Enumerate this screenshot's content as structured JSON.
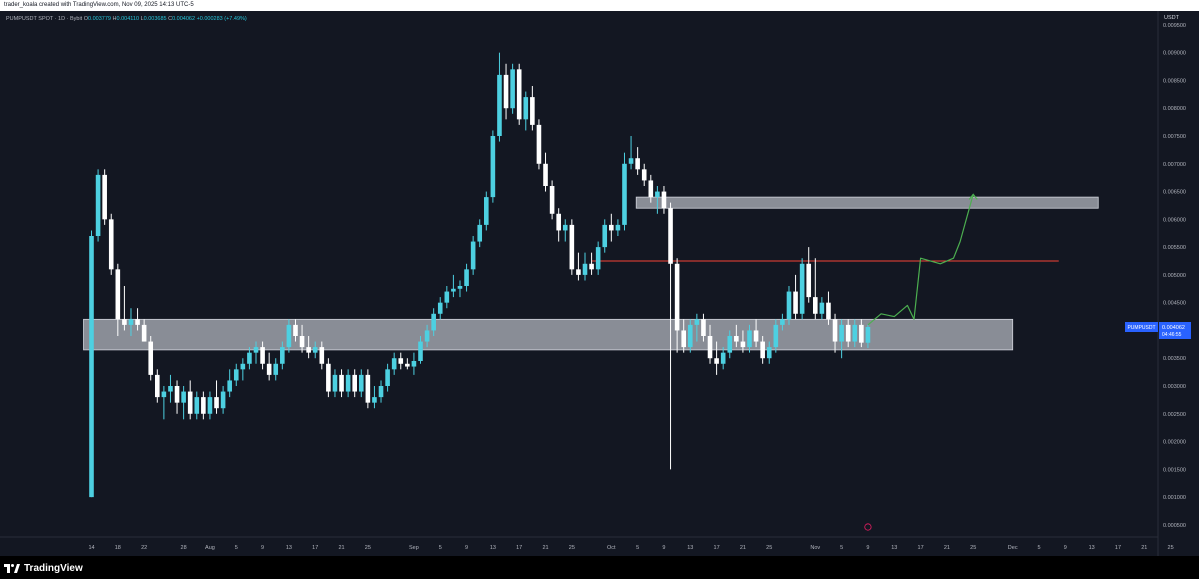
{
  "header": {
    "caption": "trader_koala created with TradingView.com, Nov 09, 2025 14:13 UTC-5"
  },
  "legend": {
    "symbol": "PUMPUSDT SPOT · 1D · Bybit",
    "o_label": "O",
    "o_value": "0.003779",
    "h_label": "H",
    "h_value": "0.004110",
    "l_label": "L",
    "l_value": "0.003685",
    "c_label": "C",
    "c_value": "0.004062",
    "change": "+0.000283 (+7.49%)"
  },
  "price_axis": {
    "currency": "USDT",
    "last_price_tag": "PUMPUSDT",
    "last_price": "0.004062",
    "countdown": "04:46:55"
  },
  "footer": {
    "brand": "TradingView"
  },
  "colors": {
    "background": "#131722",
    "bull": "#4dd0e1",
    "bear": "#ffffff",
    "zone": "#b2b5be",
    "resistance_line": "#f44336",
    "projection": "#4caf50",
    "text": "#b2b5be",
    "price_tag": "#2962ff"
  },
  "chart_data": {
    "type": "candlestick",
    "timeframe": "1D",
    "ylim": [
      0.0003,
      0.00975
    ],
    "y_ticks": [
      "0.000500",
      "0.001000",
      "0.001500",
      "0.002000",
      "0.002500",
      "0.003000",
      "0.003500",
      "0.004000",
      "0.004500",
      "0.005000",
      "0.005500",
      "0.006000",
      "0.006500",
      "0.007000",
      "0.007500",
      "0.008000",
      "0.008500",
      "0.009000",
      "0.009500"
    ],
    "x_ticks": [
      "14",
      "18",
      "22",
      "28",
      "Aug",
      "5",
      "9",
      "13",
      "17",
      "21",
      "25",
      "Sep",
      "5",
      "9",
      "13",
      "17",
      "21",
      "25",
      "Oct",
      "5",
      "9",
      "13",
      "17",
      "21",
      "25",
      "Nov",
      "5",
      "9",
      "13",
      "17",
      "21",
      "25",
      "Dec",
      "5",
      "9",
      "13",
      "17",
      "21",
      "25"
    ],
    "x_start": "2025-07-14",
    "x_tick_dates": [
      "2025-07-14",
      "2025-07-18",
      "2025-07-22",
      "2025-07-28",
      "2025-08-01",
      "2025-08-05",
      "2025-08-09",
      "2025-08-13",
      "2025-08-17",
      "2025-08-21",
      "2025-08-25",
      "2025-09-01",
      "2025-09-05",
      "2025-09-09",
      "2025-09-13",
      "2025-09-17",
      "2025-09-21",
      "2025-09-25",
      "2025-10-01",
      "2025-10-05",
      "2025-10-09",
      "2025-10-13",
      "2025-10-17",
      "2025-10-21",
      "2025-10-25",
      "2025-11-01",
      "2025-11-05",
      "2025-11-09",
      "2025-11-13",
      "2025-11-17",
      "2025-11-21",
      "2025-11-25",
      "2025-12-01",
      "2025-12-05",
      "2025-12-09",
      "2025-12-13",
      "2025-12-17",
      "2025-12-21",
      "2025-12-25"
    ],
    "candles": [
      {
        "date": "2025-07-14",
        "o": 0.001,
        "h": 0.0058,
        "l": 0.001,
        "c": 0.0057
      },
      {
        "date": "2025-07-15",
        "o": 0.0057,
        "h": 0.0069,
        "l": 0.0056,
        "c": 0.0068
      },
      {
        "date": "2025-07-16",
        "o": 0.0068,
        "h": 0.0069,
        "l": 0.0059,
        "c": 0.006
      },
      {
        "date": "2025-07-17",
        "o": 0.006,
        "h": 0.0061,
        "l": 0.005,
        "c": 0.0051
      },
      {
        "date": "2025-07-18",
        "o": 0.0051,
        "h": 0.0052,
        "l": 0.0039,
        "c": 0.0042
      },
      {
        "date": "2025-07-19",
        "o": 0.0042,
        "h": 0.0048,
        "l": 0.004,
        "c": 0.0041
      },
      {
        "date": "2025-07-20",
        "o": 0.0041,
        "h": 0.0044,
        "l": 0.0039,
        "c": 0.0042
      },
      {
        "date": "2025-07-21",
        "o": 0.0042,
        "h": 0.0044,
        "l": 0.004,
        "c": 0.0041
      },
      {
        "date": "2025-07-22",
        "o": 0.0041,
        "h": 0.0042,
        "l": 0.0038,
        "c": 0.0038
      },
      {
        "date": "2025-07-23",
        "o": 0.0038,
        "h": 0.0039,
        "l": 0.0031,
        "c": 0.0032
      },
      {
        "date": "2025-07-24",
        "o": 0.0032,
        "h": 0.0033,
        "l": 0.0027,
        "c": 0.0028
      },
      {
        "date": "2025-07-25",
        "o": 0.0028,
        "h": 0.003,
        "l": 0.0024,
        "c": 0.0029
      },
      {
        "date": "2025-07-26",
        "o": 0.0029,
        "h": 0.0032,
        "l": 0.0027,
        "c": 0.003
      },
      {
        "date": "2025-07-27",
        "o": 0.003,
        "h": 0.0031,
        "l": 0.0025,
        "c": 0.0027
      },
      {
        "date": "2025-07-28",
        "o": 0.0027,
        "h": 0.003,
        "l": 0.0024,
        "c": 0.0029
      },
      {
        "date": "2025-07-29",
        "o": 0.0029,
        "h": 0.0031,
        "l": 0.0024,
        "c": 0.0025
      },
      {
        "date": "2025-07-30",
        "o": 0.0025,
        "h": 0.0029,
        "l": 0.0024,
        "c": 0.0028
      },
      {
        "date": "2025-07-31",
        "o": 0.0028,
        "h": 0.0029,
        "l": 0.0024,
        "c": 0.0025
      },
      {
        "date": "2025-08-01",
        "o": 0.0025,
        "h": 0.0029,
        "l": 0.0024,
        "c": 0.0028
      },
      {
        "date": "2025-08-02",
        "o": 0.0028,
        "h": 0.0031,
        "l": 0.0025,
        "c": 0.0026
      },
      {
        "date": "2025-08-03",
        "o": 0.0026,
        "h": 0.003,
        "l": 0.0025,
        "c": 0.0029
      },
      {
        "date": "2025-08-04",
        "o": 0.0029,
        "h": 0.0033,
        "l": 0.0028,
        "c": 0.0031
      },
      {
        "date": "2025-08-05",
        "o": 0.0031,
        "h": 0.0034,
        "l": 0.003,
        "c": 0.0033
      },
      {
        "date": "2025-08-06",
        "o": 0.0033,
        "h": 0.0035,
        "l": 0.0031,
        "c": 0.0034
      },
      {
        "date": "2025-08-07",
        "o": 0.0034,
        "h": 0.0037,
        "l": 0.0033,
        "c": 0.0036
      },
      {
        "date": "2025-08-08",
        "o": 0.0036,
        "h": 0.0038,
        "l": 0.0034,
        "c": 0.0037
      },
      {
        "date": "2025-08-09",
        "o": 0.0037,
        "h": 0.0038,
        "l": 0.0033,
        "c": 0.0034
      },
      {
        "date": "2025-08-10",
        "o": 0.0034,
        "h": 0.0036,
        "l": 0.0031,
        "c": 0.0032
      },
      {
        "date": "2025-08-11",
        "o": 0.0032,
        "h": 0.0035,
        "l": 0.0031,
        "c": 0.0034
      },
      {
        "date": "2025-08-12",
        "o": 0.0034,
        "h": 0.0038,
        "l": 0.0033,
        "c": 0.0037
      },
      {
        "date": "2025-08-13",
        "o": 0.0037,
        "h": 0.0042,
        "l": 0.0036,
        "c": 0.0041
      },
      {
        "date": "2025-08-14",
        "o": 0.0041,
        "h": 0.0042,
        "l": 0.0038,
        "c": 0.0039
      },
      {
        "date": "2025-08-15",
        "o": 0.0039,
        "h": 0.0041,
        "l": 0.0036,
        "c": 0.0037
      },
      {
        "date": "2025-08-16",
        "o": 0.0037,
        "h": 0.0039,
        "l": 0.0035,
        "c": 0.0036
      },
      {
        "date": "2025-08-17",
        "o": 0.0036,
        "h": 0.0038,
        "l": 0.0035,
        "c": 0.0037
      },
      {
        "date": "2025-08-18",
        "o": 0.0037,
        "h": 0.0038,
        "l": 0.0033,
        "c": 0.0034
      },
      {
        "date": "2025-08-19",
        "o": 0.0034,
        "h": 0.0035,
        "l": 0.0028,
        "c": 0.0029
      },
      {
        "date": "2025-08-20",
        "o": 0.0029,
        "h": 0.0033,
        "l": 0.0028,
        "c": 0.0032
      },
      {
        "date": "2025-08-21",
        "o": 0.0032,
        "h": 0.0033,
        "l": 0.0028,
        "c": 0.0029
      },
      {
        "date": "2025-08-22",
        "o": 0.0029,
        "h": 0.0033,
        "l": 0.0028,
        "c": 0.0032
      },
      {
        "date": "2025-08-23",
        "o": 0.0032,
        "h": 0.0033,
        "l": 0.0028,
        "c": 0.0029
      },
      {
        "date": "2025-08-24",
        "o": 0.0029,
        "h": 0.0033,
        "l": 0.0028,
        "c": 0.0032
      },
      {
        "date": "2025-08-25",
        "o": 0.0032,
        "h": 0.0033,
        "l": 0.0026,
        "c": 0.0027
      },
      {
        "date": "2025-08-26",
        "o": 0.0027,
        "h": 0.003,
        "l": 0.0026,
        "c": 0.0028
      },
      {
        "date": "2025-08-27",
        "o": 0.0028,
        "h": 0.0031,
        "l": 0.0027,
        "c": 0.003
      },
      {
        "date": "2025-08-28",
        "o": 0.003,
        "h": 0.0034,
        "l": 0.0029,
        "c": 0.0033
      },
      {
        "date": "2025-08-29",
        "o": 0.0033,
        "h": 0.0036,
        "l": 0.0032,
        "c": 0.0035
      },
      {
        "date": "2025-08-30",
        "o": 0.0035,
        "h": 0.0036,
        "l": 0.0033,
        "c": 0.0034
      },
      {
        "date": "2025-08-31",
        "o": 0.0034,
        "h": 0.0035,
        "l": 0.0033,
        "c": 0.00335
      },
      {
        "date": "2025-09-01",
        "o": 0.00335,
        "h": 0.0036,
        "l": 0.0032,
        "c": 0.00345
      },
      {
        "date": "2025-09-02",
        "o": 0.00345,
        "h": 0.0039,
        "l": 0.0034,
        "c": 0.0038
      },
      {
        "date": "2025-09-03",
        "o": 0.0038,
        "h": 0.0041,
        "l": 0.0037,
        "c": 0.004
      },
      {
        "date": "2025-09-04",
        "o": 0.004,
        "h": 0.0044,
        "l": 0.0039,
        "c": 0.0043
      },
      {
        "date": "2025-09-05",
        "o": 0.0043,
        "h": 0.0046,
        "l": 0.0042,
        "c": 0.0045
      },
      {
        "date": "2025-09-06",
        "o": 0.0045,
        "h": 0.0048,
        "l": 0.0044,
        "c": 0.0047
      },
      {
        "date": "2025-09-07",
        "o": 0.0047,
        "h": 0.005,
        "l": 0.0046,
        "c": 0.00475
      },
      {
        "date": "2025-09-08",
        "o": 0.00475,
        "h": 0.0049,
        "l": 0.0046,
        "c": 0.0048
      },
      {
        "date": "2025-09-09",
        "o": 0.0048,
        "h": 0.0052,
        "l": 0.0047,
        "c": 0.0051
      },
      {
        "date": "2025-09-10",
        "o": 0.0051,
        "h": 0.0057,
        "l": 0.005,
        "c": 0.0056
      },
      {
        "date": "2025-09-11",
        "o": 0.0056,
        "h": 0.006,
        "l": 0.0055,
        "c": 0.0059
      },
      {
        "date": "2025-09-12",
        "o": 0.0059,
        "h": 0.0065,
        "l": 0.0058,
        "c": 0.0064
      },
      {
        "date": "2025-09-13",
        "o": 0.0064,
        "h": 0.0076,
        "l": 0.0063,
        "c": 0.0075
      },
      {
        "date": "2025-09-14",
        "o": 0.0075,
        "h": 0.009,
        "l": 0.0074,
        "c": 0.0086
      },
      {
        "date": "2025-09-15",
        "o": 0.0086,
        "h": 0.0088,
        "l": 0.0078,
        "c": 0.008
      },
      {
        "date": "2025-09-16",
        "o": 0.008,
        "h": 0.0088,
        "l": 0.0079,
        "c": 0.0087
      },
      {
        "date": "2025-09-17",
        "o": 0.0087,
        "h": 0.0088,
        "l": 0.0077,
        "c": 0.0078
      },
      {
        "date": "2025-09-18",
        "o": 0.0078,
        "h": 0.0083,
        "l": 0.0076,
        "c": 0.0082
      },
      {
        "date": "2025-09-19",
        "o": 0.0082,
        "h": 0.0084,
        "l": 0.0076,
        "c": 0.0077
      },
      {
        "date": "2025-09-20",
        "o": 0.0077,
        "h": 0.0078,
        "l": 0.0069,
        "c": 0.007
      },
      {
        "date": "2025-09-21",
        "o": 0.007,
        "h": 0.0072,
        "l": 0.0065,
        "c": 0.0066
      },
      {
        "date": "2025-09-22",
        "o": 0.0066,
        "h": 0.0067,
        "l": 0.006,
        "c": 0.0061
      },
      {
        "date": "2025-09-23",
        "o": 0.0061,
        "h": 0.0062,
        "l": 0.0056,
        "c": 0.0058
      },
      {
        "date": "2025-09-24",
        "o": 0.0058,
        "h": 0.006,
        "l": 0.0056,
        "c": 0.0059
      },
      {
        "date": "2025-09-25",
        "o": 0.0059,
        "h": 0.006,
        "l": 0.005,
        "c": 0.0051
      },
      {
        "date": "2025-09-26",
        "o": 0.0051,
        "h": 0.0054,
        "l": 0.0049,
        "c": 0.005
      },
      {
        "date": "2025-09-27",
        "o": 0.005,
        "h": 0.0054,
        "l": 0.0049,
        "c": 0.0052
      },
      {
        "date": "2025-09-28",
        "o": 0.0052,
        "h": 0.0054,
        "l": 0.005,
        "c": 0.0051
      },
      {
        "date": "2025-09-29",
        "o": 0.0051,
        "h": 0.0056,
        "l": 0.005,
        "c": 0.0055
      },
      {
        "date": "2025-09-30",
        "o": 0.0055,
        "h": 0.006,
        "l": 0.0054,
        "c": 0.0059
      },
      {
        "date": "2025-10-01",
        "o": 0.0059,
        "h": 0.0061,
        "l": 0.0056,
        "c": 0.0058
      },
      {
        "date": "2025-10-02",
        "o": 0.0058,
        "h": 0.006,
        "l": 0.0057,
        "c": 0.0059
      },
      {
        "date": "2025-10-03",
        "o": 0.0059,
        "h": 0.0072,
        "l": 0.0058,
        "c": 0.007
      },
      {
        "date": "2025-10-04",
        "o": 0.007,
        "h": 0.0075,
        "l": 0.0069,
        "c": 0.0071
      },
      {
        "date": "2025-10-05",
        "o": 0.0071,
        "h": 0.0073,
        "l": 0.0068,
        "c": 0.0069
      },
      {
        "date": "2025-10-06",
        "o": 0.0069,
        "h": 0.007,
        "l": 0.0066,
        "c": 0.0067
      },
      {
        "date": "2025-10-07",
        "o": 0.0067,
        "h": 0.0068,
        "l": 0.0063,
        "c": 0.0064
      },
      {
        "date": "2025-10-08",
        "o": 0.0064,
        "h": 0.0066,
        "l": 0.0061,
        "c": 0.0065
      },
      {
        "date": "2025-10-09",
        "o": 0.0065,
        "h": 0.0066,
        "l": 0.0061,
        "c": 0.0062
      },
      {
        "date": "2025-10-10",
        "o": 0.0062,
        "h": 0.0063,
        "l": 0.0015,
        "c": 0.0052
      },
      {
        "date": "2025-10-11",
        "o": 0.0052,
        "h": 0.0053,
        "l": 0.0036,
        "c": 0.004
      },
      {
        "date": "2025-10-12",
        "o": 0.004,
        "h": 0.0042,
        "l": 0.0036,
        "c": 0.0037
      },
      {
        "date": "2025-10-13",
        "o": 0.0037,
        "h": 0.0042,
        "l": 0.0036,
        "c": 0.0041
      },
      {
        "date": "2025-10-14",
        "o": 0.0041,
        "h": 0.0043,
        "l": 0.0038,
        "c": 0.0042
      },
      {
        "date": "2025-10-15",
        "o": 0.0042,
        "h": 0.0043,
        "l": 0.0038,
        "c": 0.0039
      },
      {
        "date": "2025-10-16",
        "o": 0.0039,
        "h": 0.0041,
        "l": 0.0034,
        "c": 0.0035
      },
      {
        "date": "2025-10-17",
        "o": 0.0035,
        "h": 0.0038,
        "l": 0.0032,
        "c": 0.0034
      },
      {
        "date": "2025-10-18",
        "o": 0.0034,
        "h": 0.0037,
        "l": 0.0033,
        "c": 0.0036
      },
      {
        "date": "2025-10-19",
        "o": 0.0036,
        "h": 0.004,
        "l": 0.0035,
        "c": 0.0039
      },
      {
        "date": "2025-10-20",
        "o": 0.0039,
        "h": 0.0041,
        "l": 0.0037,
        "c": 0.0038
      },
      {
        "date": "2025-10-21",
        "o": 0.0038,
        "h": 0.004,
        "l": 0.0036,
        "c": 0.0037
      },
      {
        "date": "2025-10-22",
        "o": 0.0037,
        "h": 0.0041,
        "l": 0.0036,
        "c": 0.004
      },
      {
        "date": "2025-10-23",
        "o": 0.004,
        "h": 0.0042,
        "l": 0.0037,
        "c": 0.0038
      },
      {
        "date": "2025-10-24",
        "o": 0.0038,
        "h": 0.0039,
        "l": 0.0034,
        "c": 0.0035
      },
      {
        "date": "2025-10-25",
        "o": 0.0035,
        "h": 0.0038,
        "l": 0.0034,
        "c": 0.0037
      },
      {
        "date": "2025-10-26",
        "o": 0.0037,
        "h": 0.0042,
        "l": 0.0036,
        "c": 0.0041
      },
      {
        "date": "2025-10-27",
        "o": 0.0041,
        "h": 0.0043,
        "l": 0.004,
        "c": 0.0042
      },
      {
        "date": "2025-10-28",
        "o": 0.0042,
        "h": 0.0048,
        "l": 0.0041,
        "c": 0.0047
      },
      {
        "date": "2025-10-29",
        "o": 0.0047,
        "h": 0.005,
        "l": 0.0042,
        "c": 0.0043
      },
      {
        "date": "2025-10-30",
        "o": 0.0043,
        "h": 0.0053,
        "l": 0.0042,
        "c": 0.0052
      },
      {
        "date": "2025-10-31",
        "o": 0.0052,
        "h": 0.0055,
        "l": 0.0045,
        "c": 0.0046
      },
      {
        "date": "2025-11-01",
        "o": 0.0046,
        "h": 0.0053,
        "l": 0.0042,
        "c": 0.0043
      },
      {
        "date": "2025-11-02",
        "o": 0.0043,
        "h": 0.0046,
        "l": 0.0042,
        "c": 0.0045
      },
      {
        "date": "2025-11-03",
        "o": 0.0045,
        "h": 0.0047,
        "l": 0.0041,
        "c": 0.0042
      },
      {
        "date": "2025-11-04",
        "o": 0.0042,
        "h": 0.0043,
        "l": 0.0036,
        "c": 0.0038
      },
      {
        "date": "2025-11-05",
        "o": 0.0038,
        "h": 0.0042,
        "l": 0.0035,
        "c": 0.0041
      },
      {
        "date": "2025-11-06",
        "o": 0.0041,
        "h": 0.0042,
        "l": 0.0037,
        "c": 0.0038
      },
      {
        "date": "2025-11-07",
        "o": 0.0038,
        "h": 0.0042,
        "l": 0.0037,
        "c": 0.0041
      },
      {
        "date": "2025-11-08",
        "o": 0.0041,
        "h": 0.0042,
        "l": 0.0037,
        "c": 0.00378
      },
      {
        "date": "2025-11-09",
        "o": 0.003779,
        "h": 0.00411,
        "l": 0.003685,
        "c": 0.004062
      }
    ],
    "zones": [
      {
        "from": "2025-07-14",
        "to": "2025-12-01",
        "low": 0.00365,
        "high": 0.0042
      },
      {
        "from": "2025-10-06",
        "to": "2025-12-14",
        "low": 0.0062,
        "high": 0.0064
      }
    ],
    "lines": [
      {
        "from": "2025-09-28",
        "to": "2025-12-08",
        "price": 0.00525
      }
    ],
    "projection": [
      {
        "date": "2025-11-09",
        "price": 0.0041
      },
      {
        "date": "2025-11-11",
        "price": 0.0043
      },
      {
        "date": "2025-11-13",
        "price": 0.00425
      },
      {
        "date": "2025-11-15",
        "price": 0.00445
      },
      {
        "date": "2025-11-16",
        "price": 0.0042
      },
      {
        "date": "2025-11-17",
        "price": 0.0053
      },
      {
        "date": "2025-11-20",
        "price": 0.0052
      },
      {
        "date": "2025-11-22",
        "price": 0.0053
      },
      {
        "date": "2025-11-23",
        "price": 0.0056
      },
      {
        "date": "2025-11-25",
        "price": 0.00645
      }
    ]
  }
}
